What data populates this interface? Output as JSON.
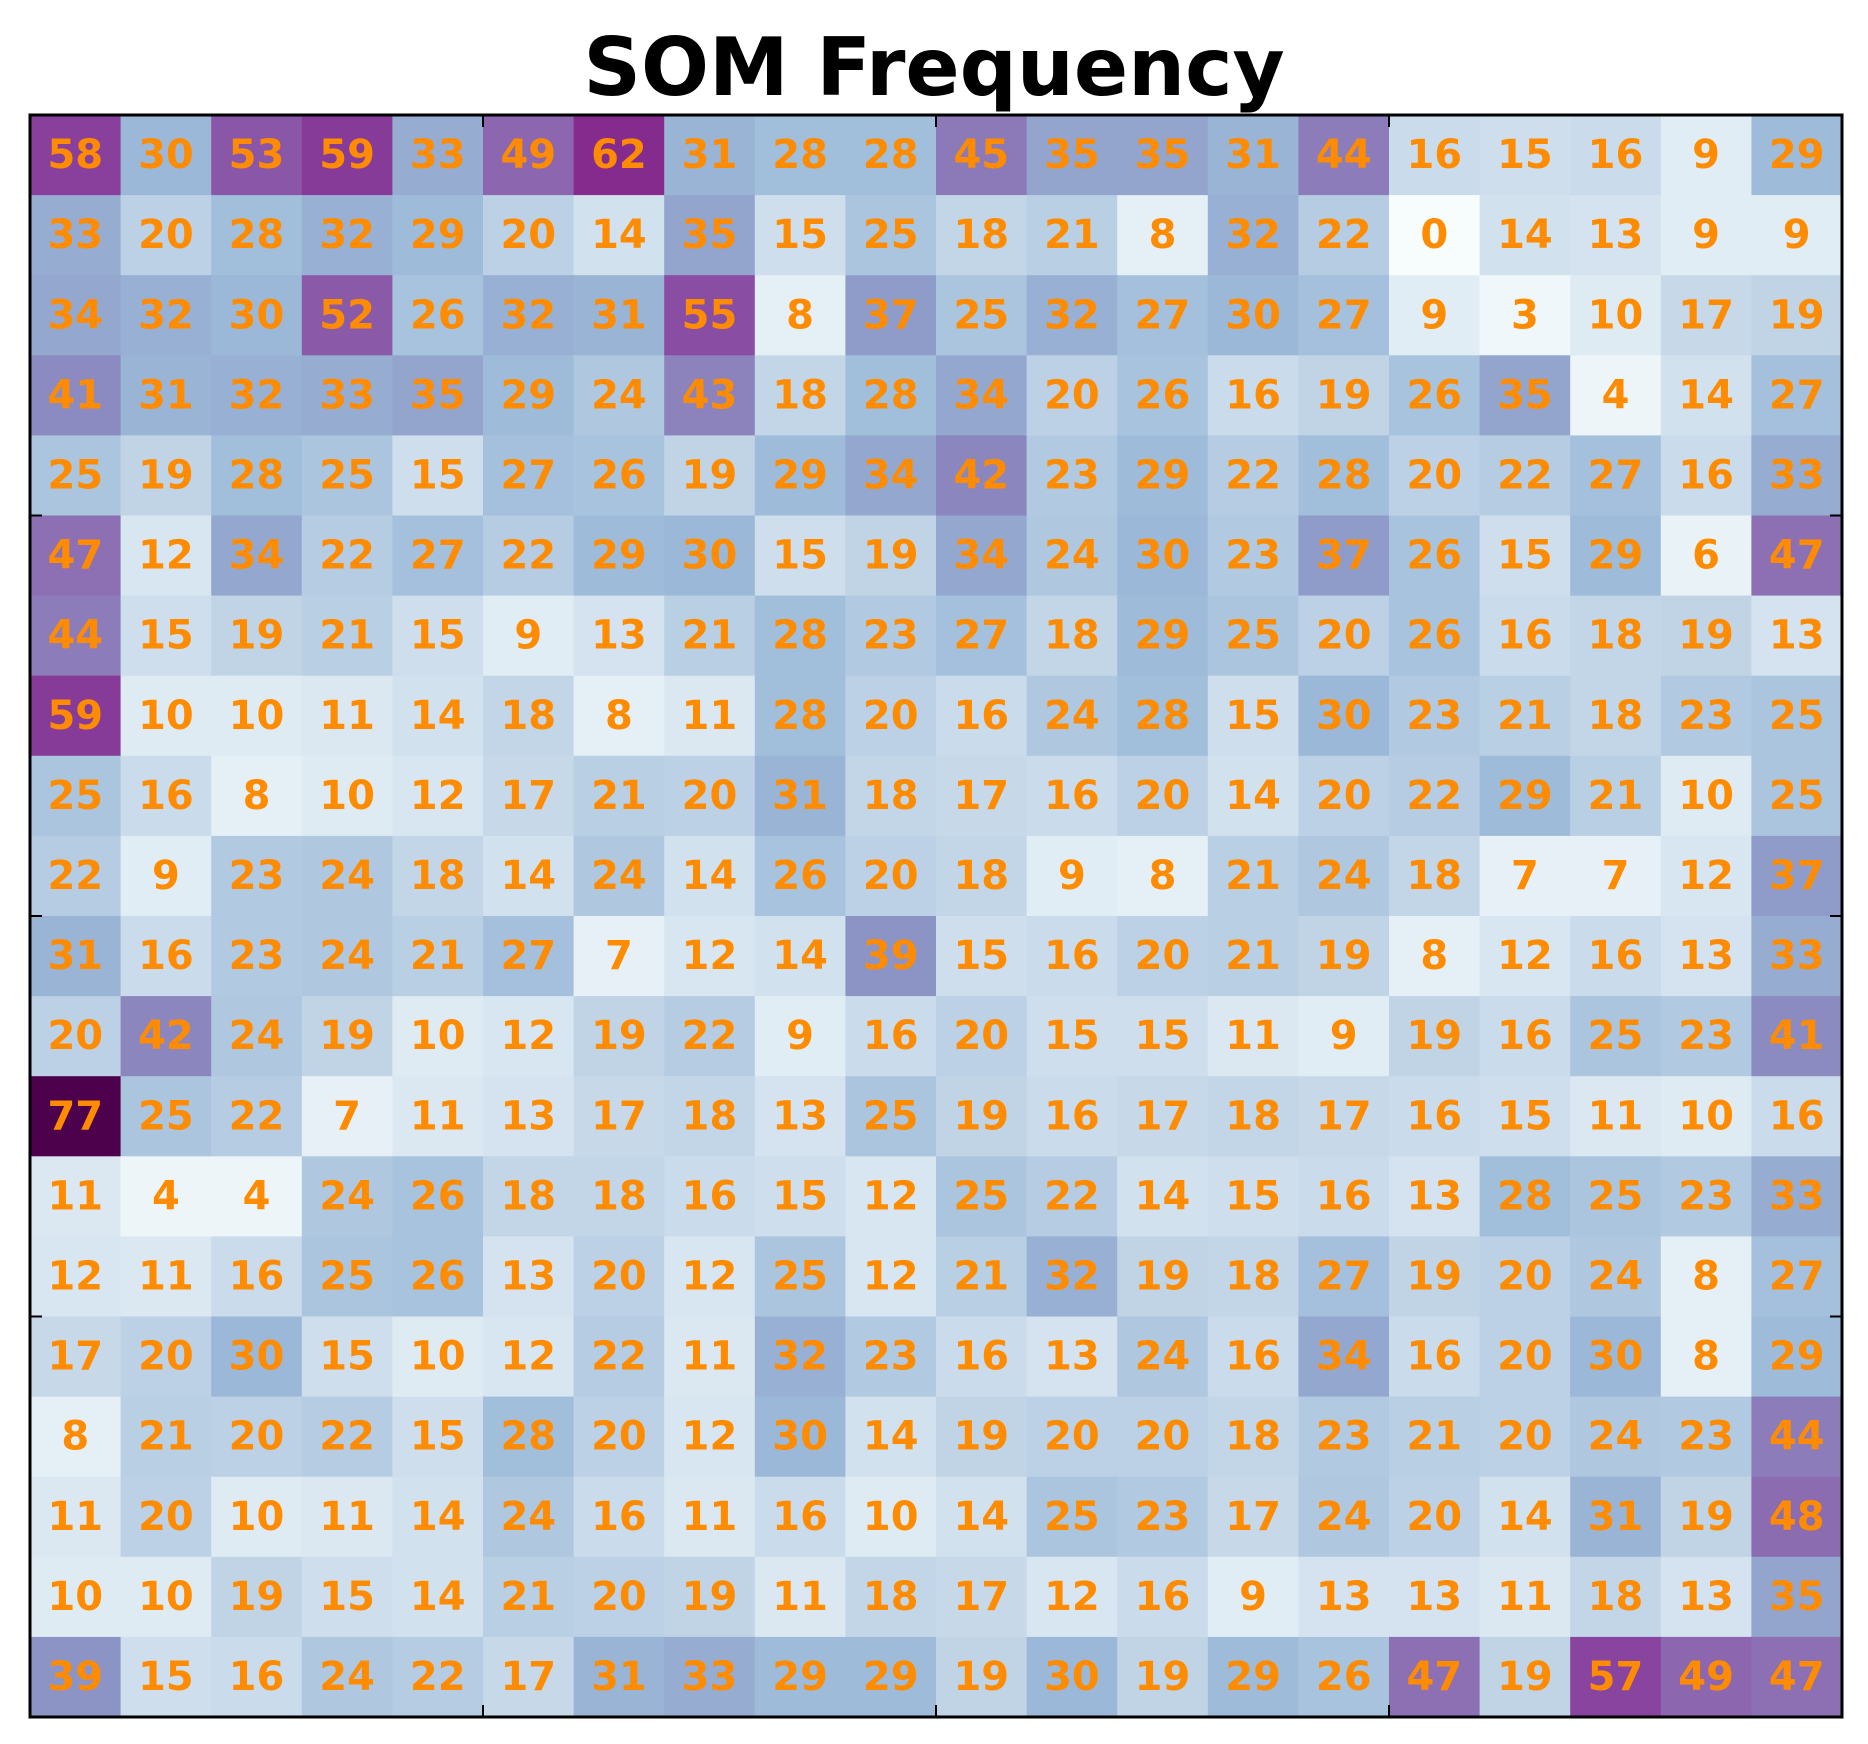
{
  "chart_data": {
    "type": "heatmap",
    "title": "SOM Frequency",
    "rows": 20,
    "cols": 20,
    "grid": false,
    "colormap": "BuPu",
    "label_color": "#ff8c00",
    "vmin": 0,
    "vmax": 77,
    "values": [
      [
        58,
        30,
        53,
        59,
        33,
        49,
        62,
        31,
        28,
        28,
        45,
        35,
        35,
        31,
        44,
        16,
        15,
        16,
        9,
        29
      ],
      [
        33,
        20,
        28,
        32,
        29,
        20,
        14,
        35,
        15,
        25,
        18,
        21,
        8,
        32,
        22,
        0,
        14,
        13,
        9,
        9
      ],
      [
        34,
        32,
        30,
        52,
        26,
        32,
        31,
        55,
        8,
        37,
        25,
        32,
        27,
        30,
        27,
        9,
        3,
        10,
        17,
        19
      ],
      [
        41,
        31,
        32,
        33,
        35,
        29,
        24,
        43,
        18,
        28,
        34,
        20,
        26,
        16,
        19,
        26,
        35,
        4,
        14,
        27
      ],
      [
        25,
        19,
        28,
        25,
        15,
        27,
        26,
        19,
        29,
        34,
        42,
        23,
        29,
        22,
        28,
        20,
        22,
        27,
        16,
        33
      ],
      [
        47,
        12,
        34,
        22,
        27,
        22,
        29,
        30,
        15,
        19,
        34,
        24,
        30,
        23,
        37,
        26,
        15,
        29,
        6,
        47
      ],
      [
        44,
        15,
        19,
        21,
        15,
        9,
        13,
        21,
        28,
        23,
        27,
        18,
        29,
        25,
        20,
        26,
        16,
        18,
        19,
        13
      ],
      [
        59,
        10,
        10,
        11,
        14,
        18,
        8,
        11,
        28,
        20,
        16,
        24,
        28,
        15,
        30,
        23,
        21,
        18,
        23,
        25
      ],
      [
        25,
        16,
        8,
        10,
        12,
        17,
        21,
        20,
        31,
        18,
        17,
        16,
        20,
        14,
        20,
        22,
        29,
        21,
        10,
        25
      ],
      [
        22,
        9,
        23,
        24,
        18,
        14,
        24,
        14,
        26,
        20,
        18,
        9,
        8,
        21,
        24,
        18,
        7,
        7,
        12,
        37
      ],
      [
        31,
        16,
        23,
        24,
        21,
        27,
        7,
        12,
        14,
        39,
        15,
        16,
        20,
        21,
        19,
        8,
        12,
        16,
        13,
        33
      ],
      [
        20,
        42,
        24,
        19,
        10,
        12,
        19,
        22,
        9,
        16,
        20,
        15,
        15,
        11,
        9,
        19,
        16,
        25,
        23,
        41
      ],
      [
        77,
        25,
        22,
        7,
        11,
        13,
        17,
        18,
        13,
        25,
        19,
        16,
        17,
        18,
        17,
        16,
        15,
        11,
        10,
        16
      ],
      [
        11,
        4,
        4,
        24,
        26,
        18,
        18,
        16,
        15,
        12,
        25,
        22,
        14,
        15,
        16,
        13,
        28,
        25,
        23,
        33
      ],
      [
        12,
        11,
        16,
        25,
        26,
        13,
        20,
        12,
        25,
        12,
        21,
        32,
        19,
        18,
        27,
        19,
        20,
        24,
        8,
        27
      ],
      [
        17,
        20,
        30,
        15,
        10,
        12,
        22,
        11,
        32,
        23,
        16,
        13,
        24,
        16,
        34,
        16,
        20,
        30,
        8,
        29
      ],
      [
        8,
        21,
        20,
        22,
        15,
        28,
        20,
        12,
        30,
        14,
        19,
        20,
        20,
        18,
        23,
        21,
        20,
        24,
        23,
        44
      ],
      [
        11,
        20,
        10,
        11,
        14,
        24,
        16,
        11,
        16,
        10,
        14,
        25,
        23,
        17,
        24,
        20,
        14,
        31,
        19,
        48
      ],
      [
        10,
        10,
        19,
        15,
        14,
        21,
        20,
        19,
        11,
        18,
        17,
        12,
        16,
        9,
        13,
        13,
        11,
        18,
        13,
        35
      ],
      [
        39,
        15,
        16,
        24,
        22,
        17,
        31,
        33,
        29,
        29,
        19,
        30,
        19,
        29,
        26,
        47,
        19,
        57,
        49,
        47
      ]
    ]
  }
}
